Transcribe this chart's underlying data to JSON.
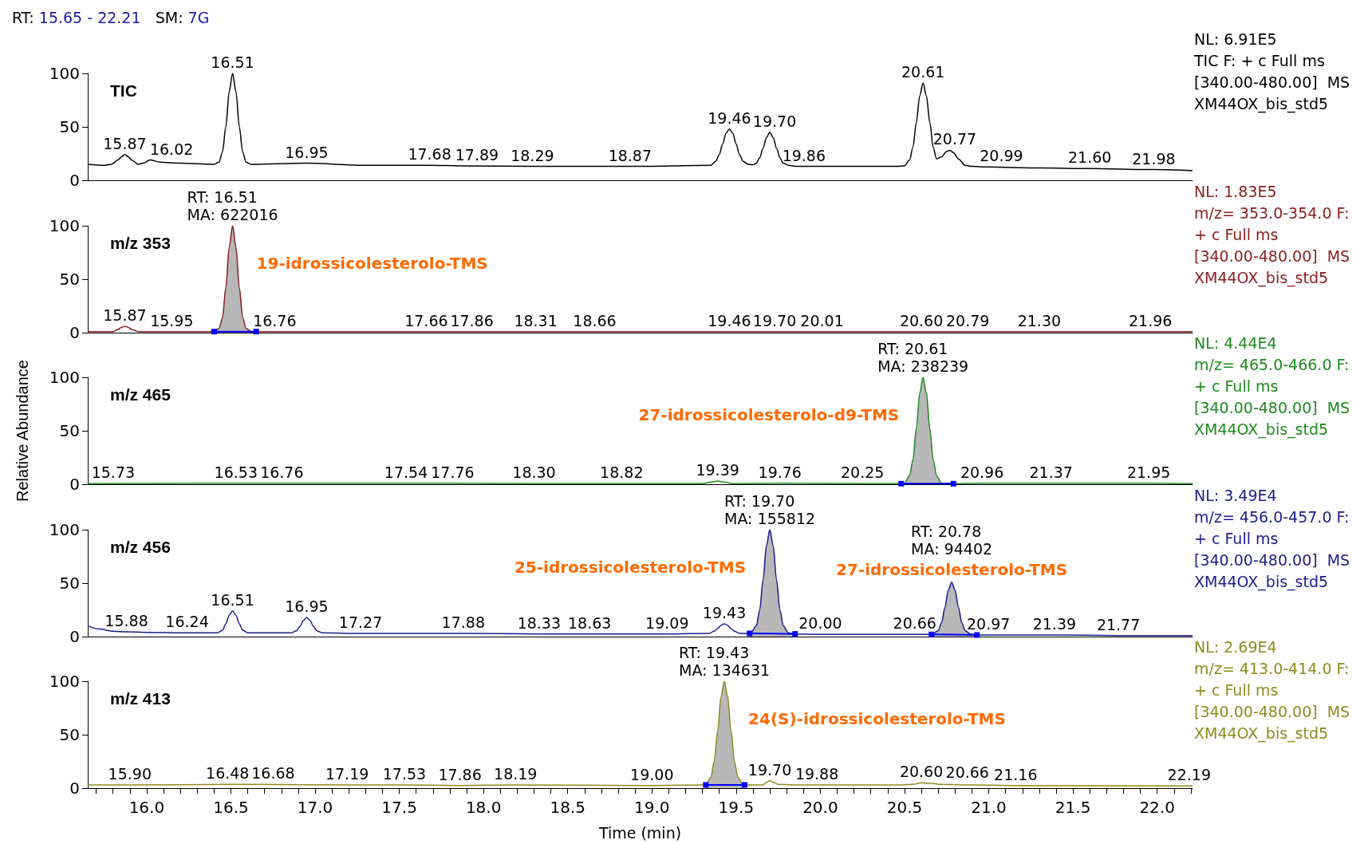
{
  "chart_data": [
    {
      "type": "line",
      "title": "TIC",
      "subtitle": "NL: 6.91E5\nTIC F: + c Full ms\n[340.00-480.00]  MS\nXM44OX_bis_std5",
      "xlim": [
        15.65,
        22.21
      ],
      "ylim": [
        0,
        100
      ],
      "yticks": [
        0,
        50,
        100
      ],
      "tick_labels": "y",
      "series": [
        {
          "color": "#000000",
          "x": [
            15.65,
            15.75,
            15.79,
            15.83,
            15.85,
            15.87,
            15.89,
            15.91,
            15.95,
            15.98,
            16.02,
            16.08,
            16.2,
            16.4,
            16.43,
            16.45,
            16.47,
            16.49,
            16.51,
            16.53,
            16.55,
            16.57,
            16.59,
            16.62,
            16.95,
            17.3,
            17.68,
            17.89,
            18.29,
            18.87,
            19.35,
            19.38,
            19.4,
            19.42,
            19.44,
            19.46,
            19.48,
            19.5,
            19.52,
            19.54,
            19.57,
            19.6,
            19.62,
            19.64,
            19.66,
            19.68,
            19.7,
            19.72,
            19.74,
            19.76,
            19.78,
            19.81,
            19.86,
            20.45,
            20.5,
            20.53,
            20.55,
            20.57,
            20.59,
            20.61,
            20.63,
            20.65,
            20.67,
            20.69,
            20.72,
            20.75,
            20.77,
            20.79,
            20.82,
            20.86,
            20.9,
            20.99,
            21.3,
            21.6,
            21.98,
            22.21
          ],
          "values": [
            15,
            14,
            15,
            19,
            22,
            24,
            22,
            19,
            15,
            16,
            19,
            17,
            16,
            15,
            17,
            26.5,
            50,
            83,
            100,
            83,
            50,
            26.5,
            17,
            15,
            16,
            14,
            14,
            13.5,
            13,
            13,
            14,
            18,
            24,
            34,
            44,
            48,
            44,
            34,
            24,
            18,
            15,
            14.5,
            16,
            21,
            30,
            40,
            45,
            40,
            30,
            21,
            16,
            14,
            13,
            13,
            13.5,
            19,
            31,
            54,
            79,
            91,
            79,
            54,
            31,
            20,
            22,
            27,
            28,
            26,
            20,
            14,
            13,
            12.5,
            11.5,
            11,
            10,
            9
          ]
        }
      ],
      "annotations": [
        "RT: 15.65 - 22.21   SM: 7G",
        {
          "text": "15.87",
          "x": 15.87,
          "y": 24
        },
        {
          "text": "16.02",
          "x": 16.02,
          "y": 19
        },
        {
          "text": "16.51",
          "x": 16.51,
          "y": 100
        },
        {
          "text": "16.95",
          "x": 16.95,
          "y": 16
        },
        {
          "text": "17.68",
          "x": 17.68,
          "y": 14
        },
        {
          "text": "17.89",
          "x": 17.89,
          "y": 13.5
        },
        {
          "text": "18.29",
          "x": 18.29,
          "y": 13
        },
        {
          "text": "18.87",
          "x": 18.87,
          "y": 13
        },
        {
          "text": "19.46",
          "x": 19.46,
          "y": 48
        },
        {
          "text": "19.70",
          "x": 19.7,
          "y": 45
        },
        {
          "text": "19.86",
          "x": 19.86,
          "y": 13
        },
        {
          "text": "20.61",
          "x": 20.61,
          "y": 91
        },
        {
          "text": "20.77",
          "x": 20.77,
          "y": 28
        },
        {
          "text": "20.99",
          "x": 20.99,
          "y": 12.5
        },
        {
          "text": "21.60",
          "x": 21.6,
          "y": 11
        },
        {
          "text": "21.98",
          "x": 21.98,
          "y": 10
        }
      ]
    },
    {
      "type": "line",
      "title": "m/z 353",
      "subtitle": "NL: 1.83E5\nm/z= 353.0-354.0 F:\n+ c Full ms\n[340.00-480.00]  MS\nXM44OX_bis_std5",
      "xlim": [
        15.65,
        22.21
      ],
      "ylim": [
        0,
        100
      ],
      "yticks": [
        0,
        50,
        100
      ],
      "tick_labels": "y",
      "series": [
        {
          "color": "#8b1c1c",
          "x": [
            15.65,
            15.8,
            15.83,
            15.85,
            15.87,
            15.89,
            15.91,
            15.95,
            16.4,
            16.43,
            16.45,
            16.47,
            16.49,
            16.51,
            16.53,
            16.55,
            16.57,
            16.59,
            16.62,
            16.65,
            22.21
          ],
          "values": [
            1,
            1,
            3,
            5,
            6,
            5,
            3,
            1,
            1,
            4,
            14,
            42,
            80,
            100,
            80,
            42,
            14,
            4,
            1,
            1,
            1
          ]
        },
        {
          "type": "area",
          "name": "19-idrossicolesterolo-TMS",
          "color": "#b8b8b8",
          "x": [
            16.4,
            16.43,
            16.45,
            16.47,
            16.49,
            16.51,
            16.53,
            16.55,
            16.57,
            16.59,
            16.62,
            16.65
          ],
          "values": [
            1,
            4,
            14,
            42,
            80,
            100,
            80,
            42,
            14,
            4,
            1,
            1
          ]
        },
        {
          "type": "line",
          "color": "#0000ff",
          "x": [
            16.4,
            16.52,
            16.65
          ],
          "values": [
            1,
            1,
            1
          ]
        },
        {
          "type": "scatter",
          "marker": "square",
          "color": "#0000ff",
          "x": [
            16.4,
            16.65
          ],
          "values": [
            1,
            1
          ]
        }
      ],
      "annotations": [
        {
          "text": "15.87",
          "x": 15.87,
          "y": 6
        },
        {
          "text": "15.95",
          "x": 15.95,
          "y": 1
        },
        {
          "text": "RT: 16.51\nMA: 622016",
          "x": 16.51,
          "y": 100
        },
        {
          "text": "16.76",
          "x": 16.76,
          "y": 1
        },
        {
          "text": "17.66",
          "x": 17.66,
          "y": 1
        },
        {
          "text": "17.86",
          "x": 17.86,
          "y": 1
        },
        {
          "text": "18.31",
          "x": 18.31,
          "y": 1
        },
        {
          "text": "18.66",
          "x": 18.66,
          "y": 1
        },
        {
          "text": "19.46",
          "x": 19.46,
          "y": 1
        },
        {
          "text": "19.70",
          "x": 19.7,
          "y": 1
        },
        {
          "text": "20.01",
          "x": 20.01,
          "y": 1
        },
        {
          "text": "20.60",
          "x": 20.6,
          "y": 1
        },
        {
          "text": "20.79",
          "x": 20.79,
          "y": 1
        },
        {
          "text": "21.30",
          "x": 21.3,
          "y": 1
        },
        {
          "text": "21.96",
          "x": 21.96,
          "y": 1
        }
      ]
    },
    {
      "type": "line",
      "title": "m/z 465",
      "subtitle": "NL: 4.44E4\nm/z= 465.0-466.0 F:\n+ c Full ms\n[340.00-480.00]  MS\nXM44OX_bis_std5",
      "ylabel": "Relative Abundance",
      "xlim": [
        15.65,
        22.21
      ],
      "ylim": [
        0,
        100
      ],
      "yticks": [
        0,
        50,
        100
      ],
      "tick_labels": "y",
      "series": [
        {
          "color": "#1e8a1e",
          "x": [
            15.65,
            15.73,
            16.53,
            16.76,
            17.54,
            17.76,
            18.3,
            18.82,
            19.3,
            19.35,
            19.39,
            19.43,
            19.48,
            19.76,
            20.25,
            20.48,
            20.5,
            20.53,
            20.55,
            20.57,
            20.59,
            20.61,
            20.63,
            20.65,
            20.67,
            20.69,
            20.72,
            20.79,
            20.96,
            21.37,
            21.95,
            22.21
          ],
          "values": [
            0.5,
            0.5,
            1,
            1,
            1,
            1,
            0.5,
            0.5,
            0.5,
            2,
            3,
            2,
            0.5,
            1,
            0.5,
            0.5,
            1,
            8,
            23,
            52,
            85,
            100,
            85,
            52,
            23,
            8,
            1,
            0.5,
            1,
            1,
            1,
            0.5
          ]
        },
        {
          "type": "area",
          "name": "27-idrossicolesterolo-d9-TMS",
          "color": "#b8b8b8",
          "x": [
            20.48,
            20.5,
            20.53,
            20.55,
            20.57,
            20.59,
            20.61,
            20.63,
            20.65,
            20.67,
            20.69,
            20.72,
            20.79
          ],
          "values": [
            0.5,
            1,
            8,
            23,
            52,
            85,
            100,
            85,
            52,
            23,
            8,
            1,
            0.5
          ]
        },
        {
          "type": "line",
          "color": "#0000ff",
          "x": [
            20.48,
            20.63,
            20.79
          ],
          "values": [
            0.5,
            0.5,
            0.5
          ]
        },
        {
          "type": "scatter",
          "marker": "square",
          "color": "#0000ff",
          "x": [
            20.48,
            20.79
          ],
          "values": [
            0.5,
            0.5
          ]
        }
      ],
      "annotations": [
        {
          "text": "15.73",
          "x": 15.73,
          "y": 0.5
        },
        {
          "text": "16.53",
          "x": 16.53,
          "y": 1
        },
        {
          "text": "16.76",
          "x": 16.76,
          "y": 1
        },
        {
          "text": "17.54",
          "x": 17.54,
          "y": 1
        },
        {
          "text": "17.76",
          "x": 17.76,
          "y": 1
        },
        {
          "text": "18.30",
          "x": 18.3,
          "y": 0.5
        },
        {
          "text": "18.82",
          "x": 18.82,
          "y": 0.5
        },
        {
          "text": "19.39",
          "x": 19.39,
          "y": 3
        },
        {
          "text": "19.76",
          "x": 19.76,
          "y": 1
        },
        {
          "text": "20.25",
          "x": 20.25,
          "y": 0.5
        },
        {
          "text": "RT: 20.61\nMA: 238239",
          "x": 20.61,
          "y": 100
        },
        {
          "text": "20.96",
          "x": 20.96,
          "y": 1
        },
        {
          "text": "21.37",
          "x": 21.37,
          "y": 1
        },
        {
          "text": "21.95",
          "x": 21.95,
          "y": 1
        }
      ]
    },
    {
      "type": "line",
      "title": "m/z 456",
      "subtitle": "NL: 3.49E4\nm/z= 456.0-457.0 F:\n+ c Full ms\n[340.00-480.00]  MS\nXM44OX_bis_std5",
      "xlim": [
        15.65,
        22.21
      ],
      "ylim": [
        0,
        100
      ],
      "yticks": [
        0,
        50,
        100
      ],
      "tick_labels": "y",
      "series": [
        {
          "color": "#1c1c8c",
          "x": [
            15.65,
            15.72,
            15.8,
            15.88,
            16.0,
            16.24,
            16.42,
            16.45,
            16.47,
            16.49,
            16.51,
            16.53,
            16.55,
            16.57,
            16.6,
            16.86,
            16.89,
            16.91,
            16.93,
            16.95,
            16.97,
            16.99,
            17.01,
            17.04,
            17.27,
            17.88,
            18.33,
            18.63,
            19.09,
            19.34,
            19.37,
            19.39,
            19.41,
            19.43,
            19.45,
            19.47,
            19.49,
            19.52,
            19.58,
            19.59,
            19.62,
            19.64,
            19.66,
            19.68,
            19.7,
            19.72,
            19.74,
            19.76,
            19.78,
            19.81,
            19.85,
            20.0,
            20.66,
            20.7,
            20.72,
            20.74,
            20.76,
            20.78,
            20.8,
            20.82,
            20.84,
            20.86,
            20.89,
            20.93,
            20.97,
            21.39,
            21.77,
            22.21
          ],
          "values": [
            10,
            7,
            5,
            4.5,
            4,
            3.5,
            3.5,
            6,
            12,
            20,
            24,
            20,
            12,
            6,
            3.5,
            3.5,
            5.5,
            9.5,
            15,
            18,
            15,
            9.5,
            5.5,
            3.5,
            3,
            3,
            2.5,
            2.5,
            2.5,
            3,
            5,
            7.5,
            10.5,
            12,
            10.5,
            7.5,
            5,
            3,
            3,
            4,
            10,
            25,
            53,
            85,
            100,
            85,
            53,
            25,
            10,
            3.5,
            2.5,
            2,
            2,
            5.5,
            13,
            27.5,
            43.5,
            51,
            43.5,
            27.5,
            13,
            5.5,
            2.5,
            1.5,
            1.5,
            1.5,
            1,
            1
          ]
        },
        {
          "type": "area",
          "name": "25-idrossicolesterolo-TMS",
          "color": "#b8b8b8",
          "x": [
            19.58,
            19.59,
            19.62,
            19.64,
            19.66,
            19.68,
            19.7,
            19.72,
            19.74,
            19.76,
            19.78,
            19.81,
            19.85
          ],
          "values": [
            3,
            4,
            10,
            25,
            53,
            85,
            100,
            85,
            53,
            25,
            10,
            3.5,
            2.5
          ]
        },
        {
          "type": "area",
          "name": "27-idrossicolesterolo-TMS",
          "color": "#b8b8b8",
          "x": [
            20.66,
            20.7,
            20.72,
            20.74,
            20.76,
            20.78,
            20.8,
            20.82,
            20.84,
            20.86,
            20.89,
            20.93
          ],
          "values": [
            2,
            5.5,
            13,
            27.5,
            43.5,
            51,
            43.5,
            27.5,
            13,
            5.5,
            2.5,
            1.5
          ]
        },
        {
          "type": "line",
          "color": "#0000ff",
          "x": [
            19.58,
            19.72,
            19.85
          ],
          "values": [
            3,
            2.8,
            2.5
          ]
        },
        {
          "type": "scatter",
          "marker": "square",
          "color": "#0000ff",
          "x": [
            19.58,
            19.85
          ],
          "values": [
            3,
            2.5
          ]
        },
        {
          "type": "line",
          "color": "#0000ff",
          "x": [
            20.66,
            20.8,
            20.93
          ],
          "values": [
            2,
            1.8,
            1.5
          ]
        },
        {
          "type": "scatter",
          "marker": "square",
          "color": "#0000ff",
          "x": [
            20.66,
            20.93
          ],
          "values": [
            2,
            1.5
          ]
        }
      ],
      "annotations": [
        {
          "text": "15.88",
          "x": 15.88,
          "y": 4.5
        },
        {
          "text": "16.24",
          "x": 16.24,
          "y": 3.5
        },
        {
          "text": "16.51",
          "x": 16.51,
          "y": 24
        },
        {
          "text": "16.95",
          "x": 16.95,
          "y": 18
        },
        {
          "text": "17.27",
          "x": 17.27,
          "y": 3
        },
        {
          "text": "17.88",
          "x": 17.88,
          "y": 3
        },
        {
          "text": "18.33",
          "x": 18.33,
          "y": 2.5
        },
        {
          "text": "18.63",
          "x": 18.63,
          "y": 2.5
        },
        {
          "text": "19.09",
          "x": 19.09,
          "y": 2.5
        },
        {
          "text": "19.43",
          "x": 19.43,
          "y": 12
        },
        {
          "text": "RT: 19.70\nMA: 155812",
          "x": 19.7,
          "y": 100
        },
        {
          "text": "20.00",
          "x": 20.0,
          "y": 2
        },
        {
          "text": "20.66",
          "x": 20.66,
          "y": 2
        },
        {
          "text": "RT: 20.78\nMA: 94402",
          "x": 20.78,
          "y": 51
        },
        {
          "text": "20.97",
          "x": 20.97,
          "y": 1.5
        },
        {
          "text": "21.39",
          "x": 21.39,
          "y": 1.5
        },
        {
          "text": "21.77",
          "x": 21.77,
          "y": 1
        }
      ]
    },
    {
      "type": "line",
      "title": "m/z 413",
      "subtitle": "NL: 2.69E4\nm/z= 413.0-414.0 F:\n+ c Full ms\n[340.00-480.00]  MS\nXM44OX_bis_std5",
      "xlabel": "Time (min)",
      "xlim": [
        15.65,
        22.21
      ],
      "ylim": [
        0,
        100
      ],
      "yticks": [
        0,
        50,
        100
      ],
      "xticks": [
        {
          "value": 15.7,
          "label": null
        },
        {
          "value": 15.8,
          "label": null
        },
        {
          "value": 15.9,
          "label": null
        },
        {
          "value": 16,
          "label": "16.0"
        },
        {
          "value": 16.1,
          "label": null
        },
        {
          "value": 16.2,
          "label": null
        },
        {
          "value": 16.3,
          "label": null
        },
        {
          "value": 16.4,
          "label": null
        },
        16.5,
        {
          "value": 16.6,
          "label": null
        },
        {
          "value": 16.7,
          "label": null
        },
        {
          "value": 16.8,
          "label": null
        },
        {
          "value": 16.9,
          "label": null
        },
        {
          "value": 17,
          "label": "17.0"
        },
        {
          "value": 17.1,
          "label": null
        },
        {
          "value": 17.2,
          "label": null
        },
        {
          "value": 17.3,
          "label": null
        },
        {
          "value": 17.4,
          "label": null
        },
        17.5,
        {
          "value": 17.6,
          "label": null
        },
        {
          "value": 17.7,
          "label": null
        },
        {
          "value": 17.8,
          "label": null
        },
        {
          "value": 17.9,
          "label": null
        },
        {
          "value": 18,
          "label": "18.0"
        },
        {
          "value": 18.1,
          "label": null
        },
        {
          "value": 18.2,
          "label": null
        },
        {
          "value": 18.3,
          "label": null
        },
        {
          "value": 18.4,
          "label": null
        },
        18.5,
        {
          "value": 18.6,
          "label": null
        },
        {
          "value": 18.7,
          "label": null
        },
        {
          "value": 18.8,
          "label": null
        },
        {
          "value": 18.9,
          "label": null
        },
        {
          "value": 19,
          "label": "19.0"
        },
        {
          "value": 19.1,
          "label": null
        },
        {
          "value": 19.2,
          "label": null
        },
        {
          "value": 19.3,
          "label": null
        },
        {
          "value": 19.4,
          "label": null
        },
        19.5,
        {
          "value": 19.6,
          "label": null
        },
        {
          "value": 19.7,
          "label": null
        },
        {
          "value": 19.8,
          "label": null
        },
        {
          "value": 19.9,
          "label": null
        },
        {
          "value": 20,
          "label": "20.0"
        },
        {
          "value": 20.1,
          "label": null
        },
        {
          "value": 20.2,
          "label": null
        },
        {
          "value": 20.3,
          "label": null
        },
        {
          "value": 20.4,
          "label": null
        },
        20.5,
        {
          "value": 20.6,
          "label": null
        },
        {
          "value": 20.7,
          "label": null
        },
        {
          "value": 20.8,
          "label": null
        },
        {
          "value": 20.9,
          "label": null
        },
        {
          "value": 21,
          "label": "21.0"
        },
        {
          "value": 21.1,
          "label": null
        },
        {
          "value": 21.2,
          "label": null
        },
        {
          "value": 21.3,
          "label": null
        },
        {
          "value": 21.4,
          "label": null
        },
        21.5,
        {
          "value": 21.6,
          "label": null
        },
        {
          "value": 21.7,
          "label": null
        },
        {
          "value": 21.8,
          "label": null
        },
        {
          "value": 21.9,
          "label": null
        },
        {
          "value": 22,
          "label": "22.0"
        },
        {
          "value": 22.1,
          "label": null
        },
        {
          "value": 22.2,
          "label": null
        }
      ],
      "series": [
        {
          "color": "#8c8c1e",
          "x": [
            15.65,
            15.9,
            16.48,
            16.68,
            17.19,
            17.53,
            17.86,
            18.19,
            19.0,
            19.3,
            19.32,
            19.35,
            19.37,
            19.39,
            19.41,
            19.43,
            19.45,
            19.47,
            19.49,
            19.51,
            19.54,
            19.55,
            19.66,
            19.68,
            19.7,
            19.72,
            19.75,
            19.88,
            20.45,
            20.55,
            20.6,
            20.66,
            20.72,
            20.9,
            21.16,
            22.19,
            22.21
          ],
          "values": [
            3,
            3,
            3.5,
            3.5,
            3,
            3,
            2.5,
            3,
            2.5,
            3,
            3,
            10,
            25,
            53,
            85,
            100,
            85,
            53,
            25,
            10,
            3.5,
            3,
            3,
            5.5,
            7,
            5.5,
            3.5,
            3,
            3,
            3.5,
            5,
            4.5,
            3.5,
            3,
            2.5,
            2,
            2
          ]
        },
        {
          "type": "area",
          "name": "24(S)-idrossicolesterolo-TMS",
          "color": "#b8b8b8",
          "x": [
            19.32,
            19.35,
            19.37,
            19.39,
            19.41,
            19.43,
            19.45,
            19.47,
            19.49,
            19.51,
            19.54,
            19.55
          ],
          "values": [
            3,
            10,
            25,
            53,
            85,
            100,
            85,
            53,
            25,
            10,
            3.5,
            3
          ]
        },
        {
          "type": "line",
          "color": "#0000ff",
          "x": [
            19.32,
            19.43,
            19.55
          ],
          "values": [
            3,
            3,
            3
          ]
        },
        {
          "type": "scatter",
          "marker": "square",
          "color": "#0000ff",
          "x": [
            19.32,
            19.55
          ],
          "values": [
            3,
            3
          ]
        }
      ],
      "annotations": [
        {
          "text": "15.90",
          "x": 15.9,
          "y": 3
        },
        {
          "text": "16.48",
          "x": 16.48,
          "y": 3.5
        },
        {
          "text": "16.68",
          "x": 16.68,
          "y": 3.5
        },
        {
          "text": "17.19",
          "x": 17.19,
          "y": 3
        },
        {
          "text": "17.53",
          "x": 17.53,
          "y": 3
        },
        {
          "text": "17.86",
          "x": 17.86,
          "y": 2.5
        },
        {
          "text": "18.19",
          "x": 18.19,
          "y": 3
        },
        {
          "text": "19.00",
          "x": 19.0,
          "y": 2.5
        },
        {
          "text": "RT: 19.43\nMA: 134631",
          "x": 19.43,
          "y": 100
        },
        {
          "text": "19.70",
          "x": 19.7,
          "y": 7
        },
        {
          "text": "19.88",
          "x": 19.88,
          "y": 3
        },
        {
          "text": "20.60",
          "x": 20.6,
          "y": 5
        },
        {
          "text": "20.66",
          "x": 20.66,
          "y": 4.5
        },
        {
          "text": "21.16",
          "x": 21.16,
          "y": 2.5
        },
        {
          "text": "22.19",
          "x": 22.19,
          "y": 2
        }
      ]
    }
  ]
}
